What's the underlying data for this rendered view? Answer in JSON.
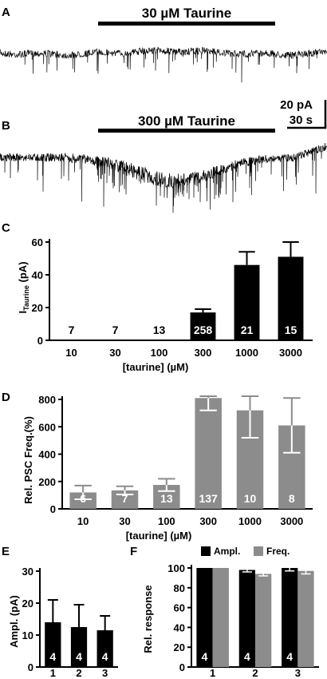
{
  "panels": {
    "A": {
      "letter": "A",
      "drug_label": "30 µM Taurine"
    },
    "B": {
      "letter": "B",
      "drug_label": "300 µM Taurine",
      "scalebar_current": "20 pA",
      "scalebar_time": "30 s"
    }
  },
  "chart_data": [
    {
      "panel": "C",
      "type": "bar",
      "categories": [
        "10",
        "30",
        "100",
        "300",
        "1000",
        "3000"
      ],
      "values": [
        0,
        0,
        0,
        17,
        46,
        51
      ],
      "errors": [
        0,
        0,
        0,
        2,
        8,
        9
      ],
      "n_labels": [
        "7",
        "7",
        "13",
        "258",
        "21",
        "15"
      ],
      "ylabel_main": "I",
      "ylabel_sub": "Taurine",
      "ylabel_unit": " (pA)",
      "xlabel": "[taurine] (µM)",
      "ylim": [
        0,
        60
      ],
      "yticks": [
        "0",
        "20",
        "40",
        "60"
      ],
      "bar_color": "#000000"
    },
    {
      "panel": "D",
      "type": "bar",
      "categories": [
        "10",
        "30",
        "100",
        "300",
        "1000",
        "3000"
      ],
      "values": [
        120,
        135,
        175,
        810,
        720,
        610
      ],
      "errors": [
        50,
        30,
        45,
        90,
        200,
        200
      ],
      "n_labels": [
        "6",
        "7",
        "13",
        "137",
        "10",
        "8"
      ],
      "ylabel": "Rel. PSC Freq.(%)",
      "xlabel": "[taurine] (µM)",
      "ylim": [
        0,
        800
      ],
      "yticks": [
        "0",
        "200",
        "400",
        "600",
        "800"
      ],
      "bar_color": "#8c8c8c"
    },
    {
      "panel": "E",
      "type": "bar",
      "categories": [
        "1",
        "2",
        "3"
      ],
      "values": [
        14,
        12.5,
        11.5
      ],
      "errors": [
        7,
        7,
        4.5
      ],
      "n_labels": [
        "4",
        "4",
        "4"
      ],
      "ylabel": "Ampl. (pA)",
      "ylim": [
        0,
        30
      ],
      "yticks": [
        "0",
        "10",
        "20",
        "30"
      ],
      "bar_color": "#000000"
    },
    {
      "panel": "F",
      "type": "bar",
      "categories": [
        "1",
        "2",
        "3"
      ],
      "series": [
        {
          "name": "Ampl.",
          "values": [
            100,
            98,
            100
          ],
          "errors": [
            0,
            2,
            3
          ],
          "color": "#000000"
        },
        {
          "name": "Freq.",
          "values": [
            100,
            94,
            97
          ],
          "errors": [
            0,
            2,
            3
          ],
          "color": "#8c8c8c"
        }
      ],
      "n_labels": [
        "4",
        "4",
        "4"
      ],
      "ylabel": "Rel. response",
      "ylim": [
        0,
        100
      ],
      "yticks": [
        "0",
        "20",
        "40",
        "60",
        "80",
        "100"
      ],
      "legend_position": "top"
    }
  ]
}
